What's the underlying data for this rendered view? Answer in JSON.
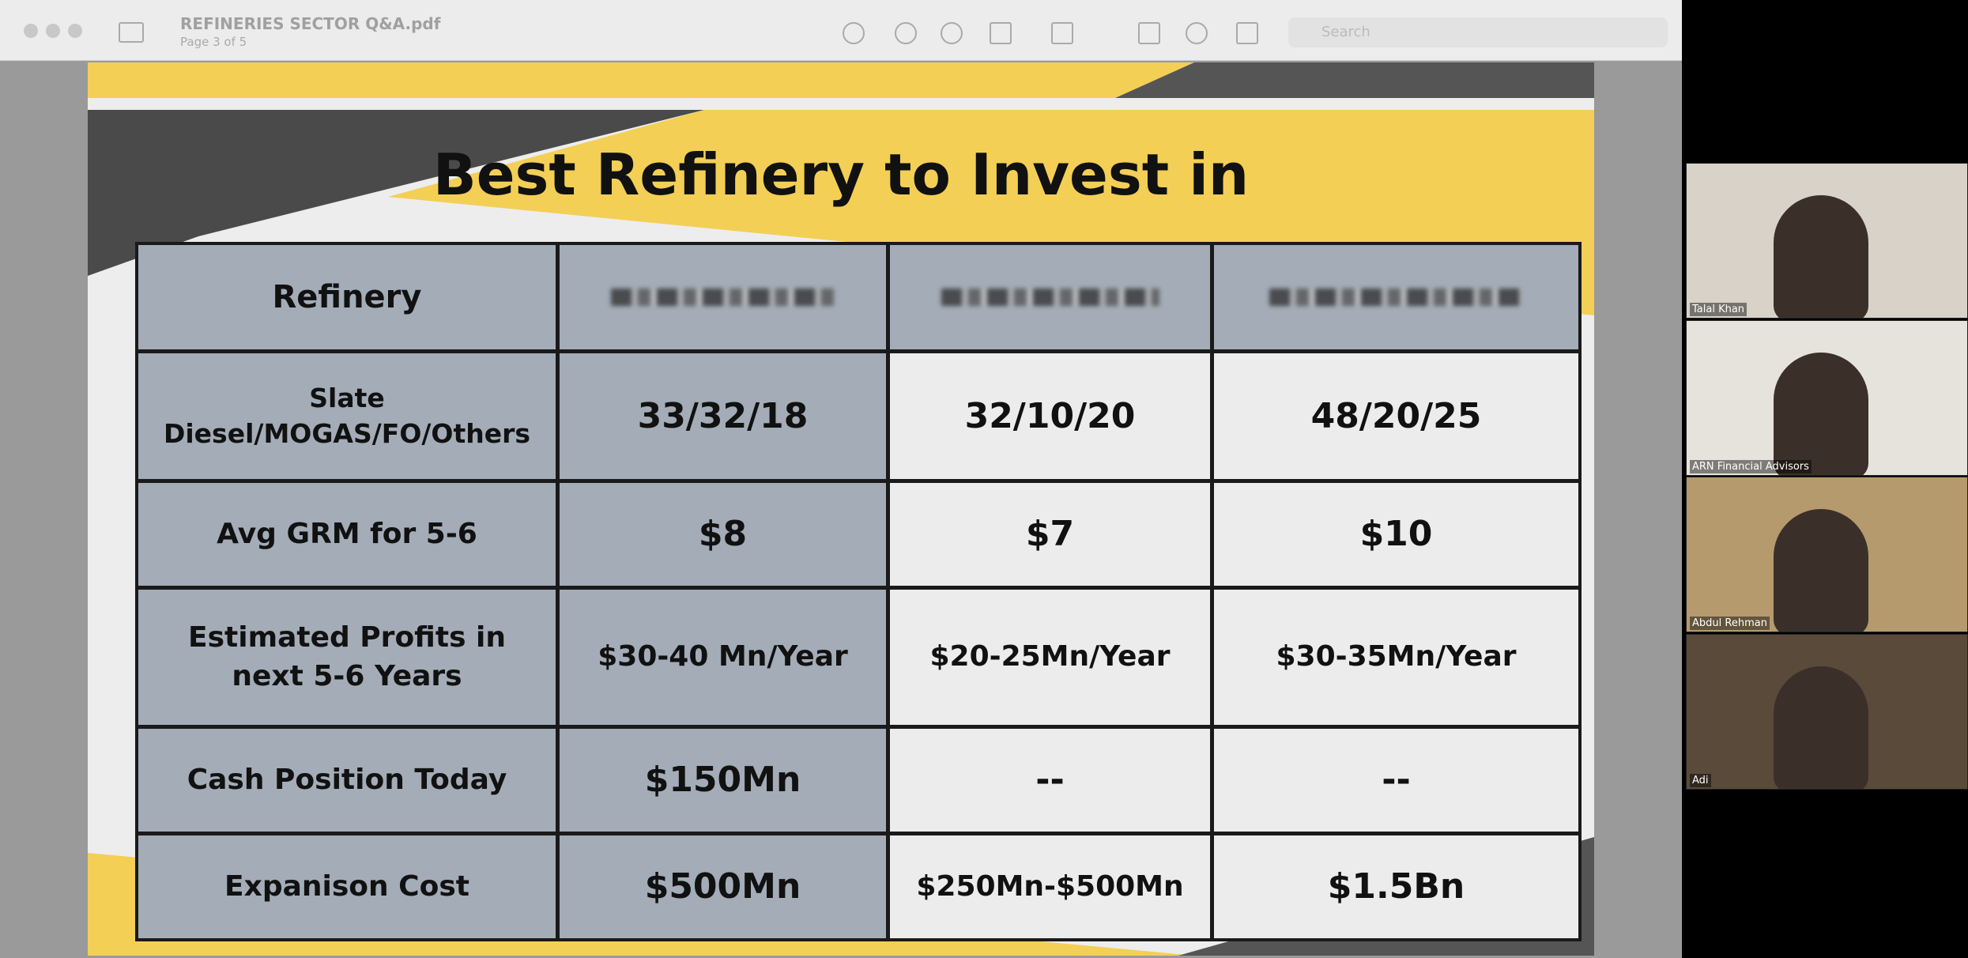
{
  "window": {
    "file_name": "REFINERIES SECTOR Q&A.pdf",
    "page_info": "Page 3 of 5",
    "search_placeholder": "Search"
  },
  "slide": {
    "title": "Best Refinery to Invest in",
    "table": {
      "header": "Refinery",
      "rows": [
        {
          "label": "Slate Diesel/MOGAS/FO/Others",
          "values": [
            "33/32/18",
            "32/10/20",
            "48/20/25"
          ]
        },
        {
          "label": "Avg GRM for 5-6",
          "values": [
            "$8",
            "$7",
            "$10"
          ]
        },
        {
          "label": "Estimated Profits in next 5-6 Years",
          "values": [
            "$30-40 Mn/Year",
            "$20-25Mn/Year",
            "$30-35Mn/Year"
          ]
        },
        {
          "label": "Cash Position Today",
          "values": [
            "$150Mn",
            "--",
            "--"
          ]
        },
        {
          "label": "Expanison Cost",
          "values": [
            "$500Mn",
            "$250Mn-$500Mn",
            "$1.5Bn"
          ]
        }
      ]
    }
  },
  "participants": [
    "Talal Khan",
    "ARN Financial Advisors",
    "Abdul Rehman",
    "Adi"
  ]
}
